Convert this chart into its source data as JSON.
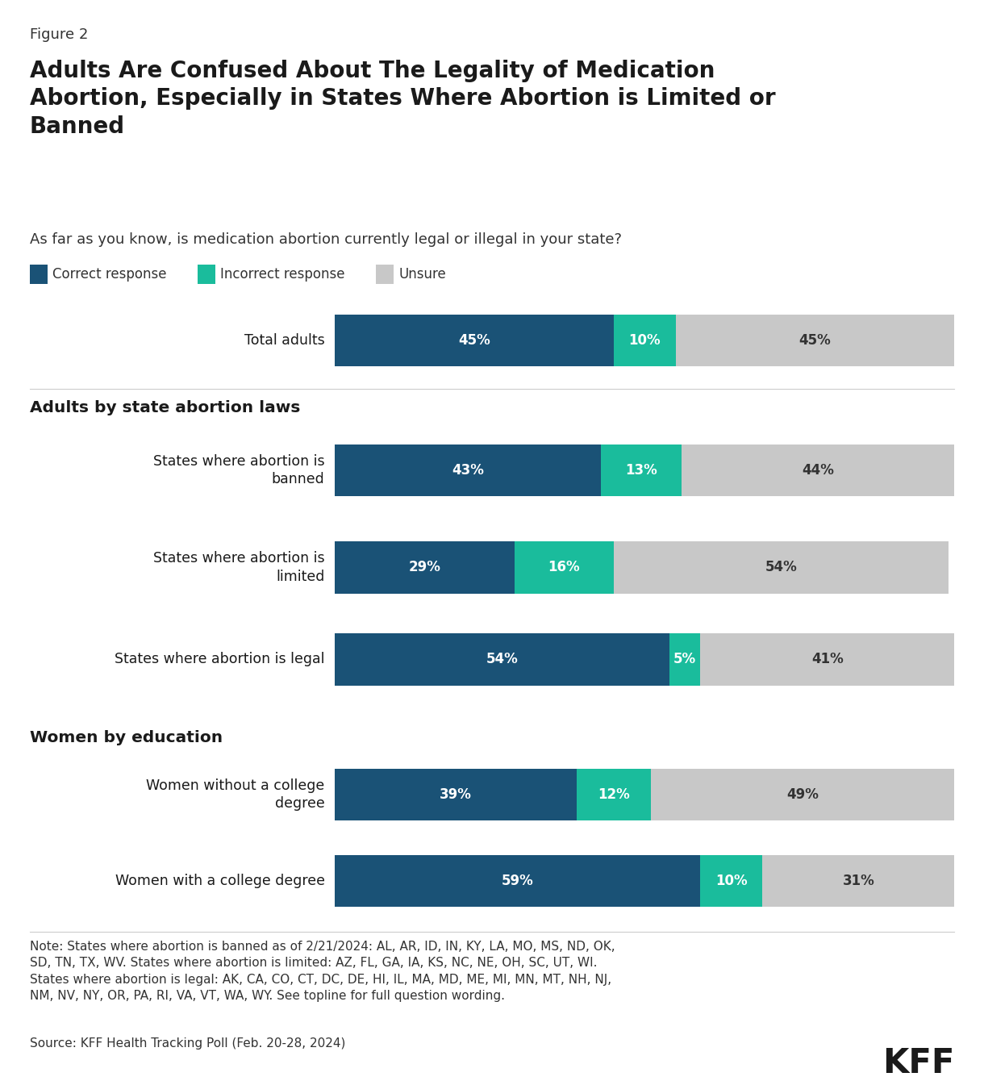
{
  "figure_label": "Figure 2",
  "title": "Adults Are Confused About The Legality of Medication\nAbortion, Especially in States Where Abortion is Limited or\nBanned",
  "question": "As far as you know, is medication abortion currently legal or illegal in your state?",
  "legend_items": [
    "Correct response",
    "Incorrect response",
    "Unsure"
  ],
  "colors": {
    "correct": "#1a5276",
    "incorrect": "#1abc9c",
    "unsure": "#c8c8c8",
    "background": "#ffffff"
  },
  "section_headers": {
    "group1": "Adults by state abortion laws",
    "group2": "Women by education"
  },
  "rows": [
    {
      "label": "Total adults",
      "correct": 45,
      "incorrect": 10,
      "unsure": 45,
      "group": "total"
    },
    {
      "label": "States where abortion is\nbanned",
      "correct": 43,
      "incorrect": 13,
      "unsure": 44,
      "group": "abortion_laws"
    },
    {
      "label": "States where abortion is\nlimited",
      "correct": 29,
      "incorrect": 16,
      "unsure": 54,
      "group": "abortion_laws"
    },
    {
      "label": "States where abortion is legal",
      "correct": 54,
      "incorrect": 5,
      "unsure": 41,
      "group": "abortion_laws"
    },
    {
      "label": "Women without a college\ndegree",
      "correct": 39,
      "incorrect": 12,
      "unsure": 49,
      "group": "education"
    },
    {
      "label": "Women with a college degree",
      "correct": 59,
      "incorrect": 10,
      "unsure": 31,
      "group": "education"
    }
  ],
  "note_text": "Note: States where abortion is banned as of 2/21/2024: AL, AR, ID, IN, KY, LA, MO, MS, ND, OK,\nSD, TN, TX, WV. States where abortion is limited: AZ, FL, GA, IA, KS, NC, NE, OH, SC, UT, WI.\nStates where abortion is legal: AK, CA, CO, CT, DC, DE, HI, IL, MA, MD, ME, MI, MN, MT, NH, NJ,\nNM, NV, NY, OR, PA, RI, VA, VT, WA, WY. See topline for full question wording.",
  "source_text": "Source: KFF Health Tracking Poll (Feb. 20-28, 2024)"
}
